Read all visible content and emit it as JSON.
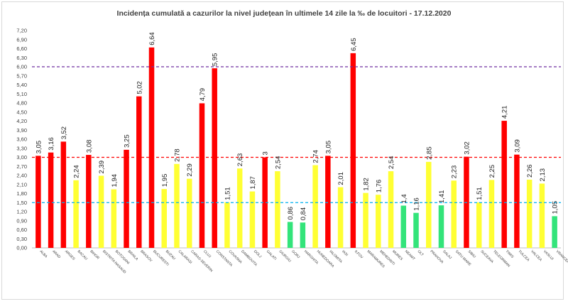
{
  "chart_data": {
    "type": "bar",
    "title": "Incidența cumulată a cazurilor la nivel județean în ultimele 14 zile la ‰ de locuitori - 17.12.2020",
    "xlabel": "",
    "ylabel": "",
    "ylim": [
      0,
      7.2
    ],
    "y_ticks": [
      "0,00",
      "0,30",
      "0,60",
      "0,90",
      "1,20",
      "1,50",
      "1,80",
      "2,10",
      "2,40",
      "2,70",
      "3,00",
      "3,30",
      "3,60",
      "3,90",
      "4,20",
      "4,50",
      "4,80",
      "5,10",
      "5,40",
      "5,70",
      "6,00",
      "6,30",
      "6,60",
      "6,90",
      "7,20"
    ],
    "grid": false,
    "legend": "none",
    "categories": [
      "ALBA",
      "ARAD",
      "ARGES",
      "BACAU",
      "BIHOR",
      "BISTRITA NASAUD",
      "BOTOSANI",
      "BRAILA",
      "BRASOV",
      "BUCURESTI",
      "BUZAU",
      "CALARASI",
      "CARAS-SEVERIN",
      "CLUJ",
      "CONSTANTA",
      "COVASNA",
      "DAMBOVITA",
      "DOLJ",
      "GALATI",
      "GIURGIU",
      "GORJ",
      "HARGHITA",
      "HUNEDOARA",
      "IALOMITA",
      "IASI",
      "ILFOV",
      "MARAMURES",
      "MEHEDINTI",
      "MURES",
      "NEAMT",
      "OLT",
      "PRAHOVA",
      "SALAJ",
      "SATU MARE",
      "SIBIU",
      "SUCEAVA",
      "TELEORMAN",
      "TIMIS",
      "TULCEA",
      "VALCEA",
      "VASLUI",
      "VRANCEA"
    ],
    "values": [
      3.05,
      3.16,
      3.52,
      2.24,
      3.08,
      2.39,
      1.94,
      3.25,
      5.02,
      6.64,
      1.95,
      2.78,
      2.29,
      4.79,
      5.95,
      1.51,
      2.63,
      1.87,
      3,
      2.54,
      0.86,
      0.84,
      2.74,
      3.05,
      2.01,
      6.45,
      1.82,
      1.76,
      2.54,
      1.4,
      1.16,
      2.85,
      1.41,
      2.23,
      3.02,
      1.51,
      2.25,
      4.21,
      3.09,
      2.26,
      2.13,
      1.05
    ],
    "value_labels": [
      "3,05",
      "3,16",
      "3,52",
      "2,24",
      "3,08",
      "2,39",
      "1,94",
      "3,25",
      "5,02",
      "6,64",
      "1,95",
      "2,78",
      "2,29",
      "4,79",
      "5,95",
      "1,51",
      "2,63",
      "1,87",
      "3",
      "2,54",
      "0,86",
      "0,84",
      "2,74",
      "3,05",
      "2,01",
      "6,45",
      "1,82",
      "1,76",
      "2,54",
      "1,4",
      "1,16",
      "2,85",
      "1,41",
      "2,23",
      "3,02",
      "1,51",
      "2,25",
      "4,21",
      "3,09",
      "2,26",
      "2,13",
      "1,05"
    ],
    "reference_lines": [
      {
        "value": 6.0,
        "color": "#7030a0"
      },
      {
        "value": 3.0,
        "color": "#ff0000"
      },
      {
        "value": 1.5,
        "color": "#00b0f0"
      }
    ],
    "colors": {
      "red": "#ff0000",
      "yellow": "#ffff33",
      "green": "#33e47a"
    }
  }
}
